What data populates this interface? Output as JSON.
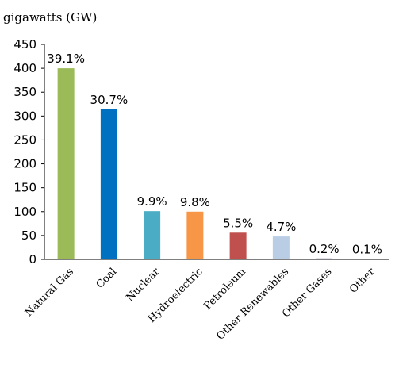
{
  "chart_data": {
    "type": "bar",
    "ylabel": "gigawatts (GW)",
    "xlabel": "",
    "ylim": [
      0,
      450
    ],
    "yticks": [
      0,
      50,
      100,
      150,
      200,
      250,
      300,
      350,
      400,
      450
    ],
    "grid": false,
    "categories": [
      "Natural Gas",
      "Coal",
      "Nuclear",
      "Hydroelectric",
      "Petroleum",
      "Other Renewables",
      "Other Gases",
      "Other"
    ],
    "values": [
      400,
      314,
      101,
      100,
      56,
      48,
      2,
      1
    ],
    "data_labels": [
      "39.1%",
      "30.7%",
      "9.9%",
      "9.8%",
      "5.5%",
      "4.7%",
      "0.2%",
      "0.1%"
    ],
    "colors": [
      "#9BBB59",
      "#0070C0",
      "#4BACC6",
      "#F79646",
      "#C0504D",
      "#B9CDE5",
      "#8064A2",
      "#4F81BD"
    ]
  }
}
